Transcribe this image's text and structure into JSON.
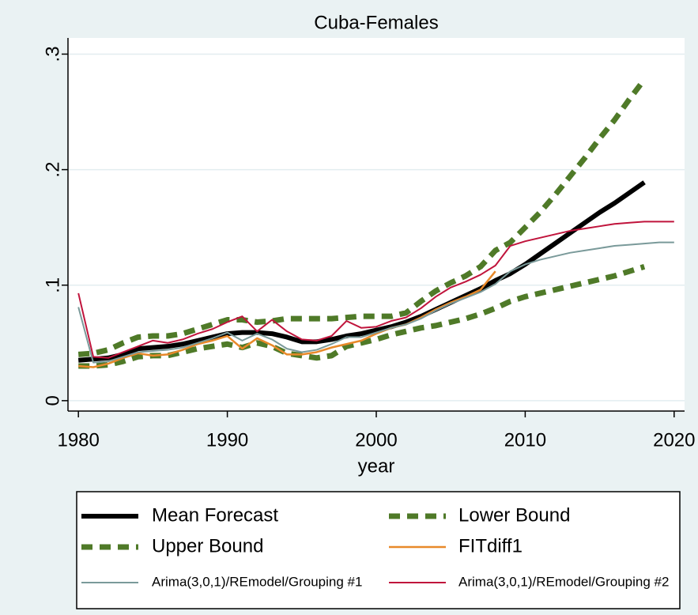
{
  "chart_data": {
    "type": "line",
    "title": "Cuba-Females",
    "x_label": "year",
    "x": [
      1980,
      1981,
      1982,
      1983,
      1984,
      1985,
      1986,
      1987,
      1988,
      1989,
      1990,
      1991,
      1992,
      1993,
      1994,
      1995,
      1996,
      1997,
      1998,
      1999,
      2000,
      2001,
      2002,
      2003,
      2004,
      2005,
      2006,
      2007,
      2008,
      2009,
      2010,
      2011,
      2012,
      2013,
      2014,
      2015,
      2016,
      2017,
      2018,
      2019,
      2020
    ],
    "xlim": [
      1979.3,
      2020.7
    ],
    "xticks": [
      1980,
      1990,
      2000,
      2010,
      2020
    ],
    "ylim": [
      -0.009,
      0.314
    ],
    "yticks": [
      0,
      {
        "value": 0.1,
        "label": ".1"
      },
      {
        "value": 0.2,
        "label": ".2"
      },
      {
        "value": 0.3,
        "label": ".3"
      }
    ],
    "grid": true,
    "series": [
      {
        "name": "Mean Forecast",
        "color": "#000000",
        "style": "solid",
        "width": 6,
        "values": [
          0.035,
          0.036,
          0.037,
          0.04,
          0.045,
          0.046,
          0.047,
          0.049,
          0.052,
          0.055,
          0.058,
          0.059,
          0.059,
          0.058,
          0.055,
          0.051,
          0.051,
          0.053,
          0.056,
          0.058,
          0.061,
          0.064,
          0.068,
          0.073,
          0.079,
          0.085,
          0.091,
          0.097,
          0.104,
          0.11,
          0.118,
          0.127,
          0.136,
          0.145,
          0.154,
          0.163,
          0.171,
          0.18,
          0.189,
          null,
          null
        ]
      },
      {
        "name": "Lower Bound",
        "color": "#4f7a28",
        "style": "dashed",
        "width": 7,
        "values": [
          0.03,
          0.03,
          0.031,
          0.034,
          0.038,
          0.039,
          0.039,
          0.042,
          0.045,
          0.047,
          0.049,
          0.046,
          0.05,
          0.047,
          0.041,
          0.039,
          0.037,
          0.039,
          0.047,
          0.05,
          0.053,
          0.057,
          0.06,
          0.063,
          0.065,
          0.068,
          0.071,
          0.075,
          0.08,
          0.086,
          0.09,
          0.093,
          0.096,
          0.099,
          0.102,
          0.105,
          0.108,
          0.112,
          0.116,
          null,
          null
        ]
      },
      {
        "name": "Upper Bound",
        "color": "#4f7a28",
        "style": "dashed",
        "width": 7,
        "values": [
          0.04,
          0.041,
          0.044,
          0.05,
          0.055,
          0.056,
          0.056,
          0.058,
          0.062,
          0.066,
          0.07,
          0.07,
          0.068,
          0.069,
          0.071,
          0.071,
          0.071,
          0.071,
          0.072,
          0.073,
          0.073,
          0.073,
          0.076,
          0.086,
          0.095,
          0.102,
          0.108,
          0.116,
          0.13,
          0.137,
          0.15,
          0.163,
          0.178,
          0.194,
          0.21,
          0.227,
          0.243,
          0.261,
          0.278,
          null,
          null
        ]
      },
      {
        "name": "FITdiff1",
        "color": "#e8892a",
        "style": "solid",
        "width": 2.5,
        "values": [
          0.03,
          0.029,
          0.032,
          0.037,
          0.041,
          0.039,
          0.04,
          0.044,
          0.049,
          0.052,
          0.056,
          0.045,
          0.054,
          0.048,
          0.04,
          0.04,
          0.042,
          0.046,
          0.049,
          0.052,
          0.058,
          0.063,
          0.066,
          0.072,
          0.079,
          0.085,
          0.09,
          0.096,
          0.112,
          null,
          null,
          null,
          null,
          null,
          null,
          null,
          null,
          null,
          null,
          null,
          null
        ]
      },
      {
        "name": "Arima(3,0,1)/REmodel/Grouping #1",
        "color": "#7a9a9a",
        "style": "solid",
        "width": 2,
        "values": [
          0.081,
          0.033,
          0.034,
          0.038,
          0.042,
          0.043,
          0.044,
          0.046,
          0.05,
          0.054,
          0.059,
          0.052,
          0.058,
          0.053,
          0.045,
          0.042,
          0.044,
          0.049,
          0.055,
          0.055,
          0.059,
          0.063,
          0.066,
          0.071,
          0.078,
          0.084,
          0.089,
          0.094,
          0.101,
          0.112,
          0.118,
          0.122,
          0.125,
          0.128,
          0.13,
          0.132,
          0.134,
          0.135,
          0.136,
          0.137,
          0.137
        ]
      },
      {
        "name": "Arima(3,0,1)/REmodel/Grouping #2",
        "color": "#c0143c",
        "style": "solid",
        "width": 2,
        "values": [
          0.093,
          0.038,
          0.037,
          0.042,
          0.047,
          0.052,
          0.05,
          0.053,
          0.058,
          0.062,
          0.068,
          0.073,
          0.06,
          0.07,
          0.06,
          0.053,
          0.052,
          0.056,
          0.069,
          0.063,
          0.064,
          0.069,
          0.072,
          0.08,
          0.09,
          0.098,
          0.103,
          0.109,
          0.117,
          0.134,
          0.138,
          0.141,
          0.144,
          0.147,
          0.149,
          0.151,
          0.153,
          0.154,
          0.155,
          0.155,
          0.155
        ]
      }
    ]
  }
}
